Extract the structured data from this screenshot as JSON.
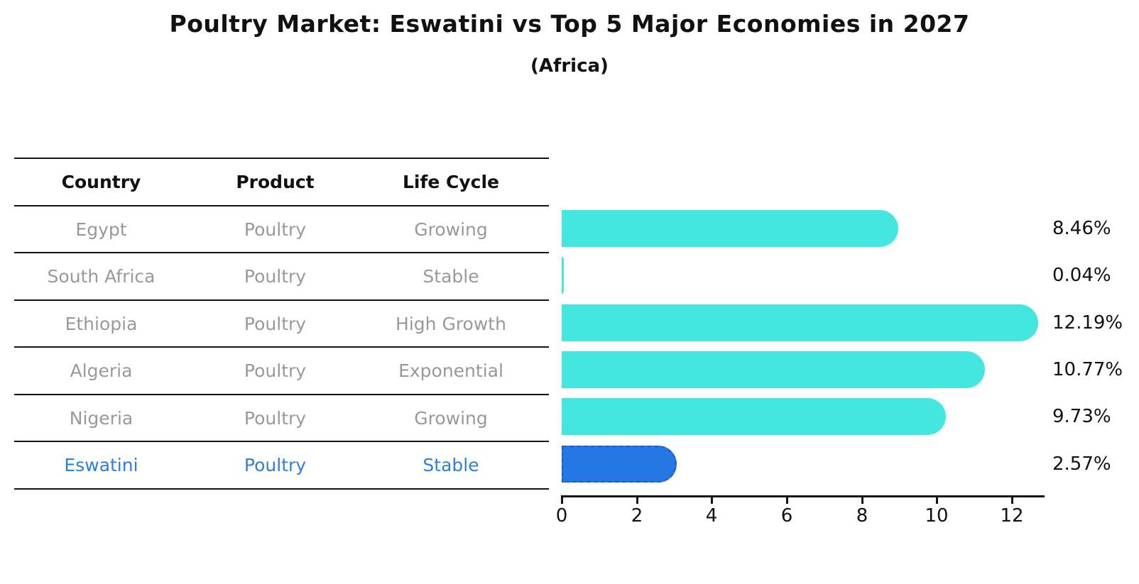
{
  "title": "Poultry Market: Eswatini vs Top 5 Major Economies in 2027",
  "subtitle": "(Africa)",
  "table": {
    "headers": [
      "Country",
      "Product",
      "Life Cycle"
    ],
    "rows": [
      {
        "country": "Egypt",
        "product": "Poultry",
        "life_cycle": "Growing",
        "highlight": false
      },
      {
        "country": "South Africa",
        "product": "Poultry",
        "life_cycle": "Stable",
        "highlight": false
      },
      {
        "country": "Ethiopia",
        "product": "Poultry",
        "life_cycle": "High Growth",
        "highlight": false
      },
      {
        "country": "Algeria",
        "product": "Poultry",
        "life_cycle": "Exponential",
        "highlight": false
      },
      {
        "country": "Nigeria",
        "product": "Poultry",
        "life_cycle": "Growing",
        "highlight": true
      }
    ],
    "highlight_row": {
      "country": "Eswatini",
      "product": "Poultry",
      "life_cycle": "Stable",
      "highlight": true
    }
  },
  "chart_data": {
    "type": "bar",
    "orientation": "horizontal",
    "title": "Poultry Market: Eswatini vs Top 5 Major Economies in 2027 (Africa)",
    "categories": [
      "Egypt",
      "South Africa",
      "Ethiopia",
      "Algeria",
      "Nigeria",
      "Eswatini"
    ],
    "values": [
      8.46,
      0.04,
      12.19,
      10.77,
      9.73,
      2.57
    ],
    "value_labels": [
      "8.46%",
      "0.04%",
      "12.19%",
      "10.77%",
      "9.73%",
      "2.57%"
    ],
    "unit": "%",
    "x_ticks": [
      "0",
      "2",
      "4",
      "6",
      "8",
      "10",
      "12"
    ],
    "xlim": [
      0,
      12.9
    ],
    "grid": false,
    "legend": false,
    "bar_color": "#44E7DF",
    "highlight_color": "#2577E6",
    "highlight_index": 5
  },
  "colors": {
    "bar_cyan": "#44E7DF",
    "bar_blue": "#2577E6",
    "highlight_text": "#2f7fd8",
    "table_text_gray": "#999999",
    "axis_black": "#141414"
  }
}
